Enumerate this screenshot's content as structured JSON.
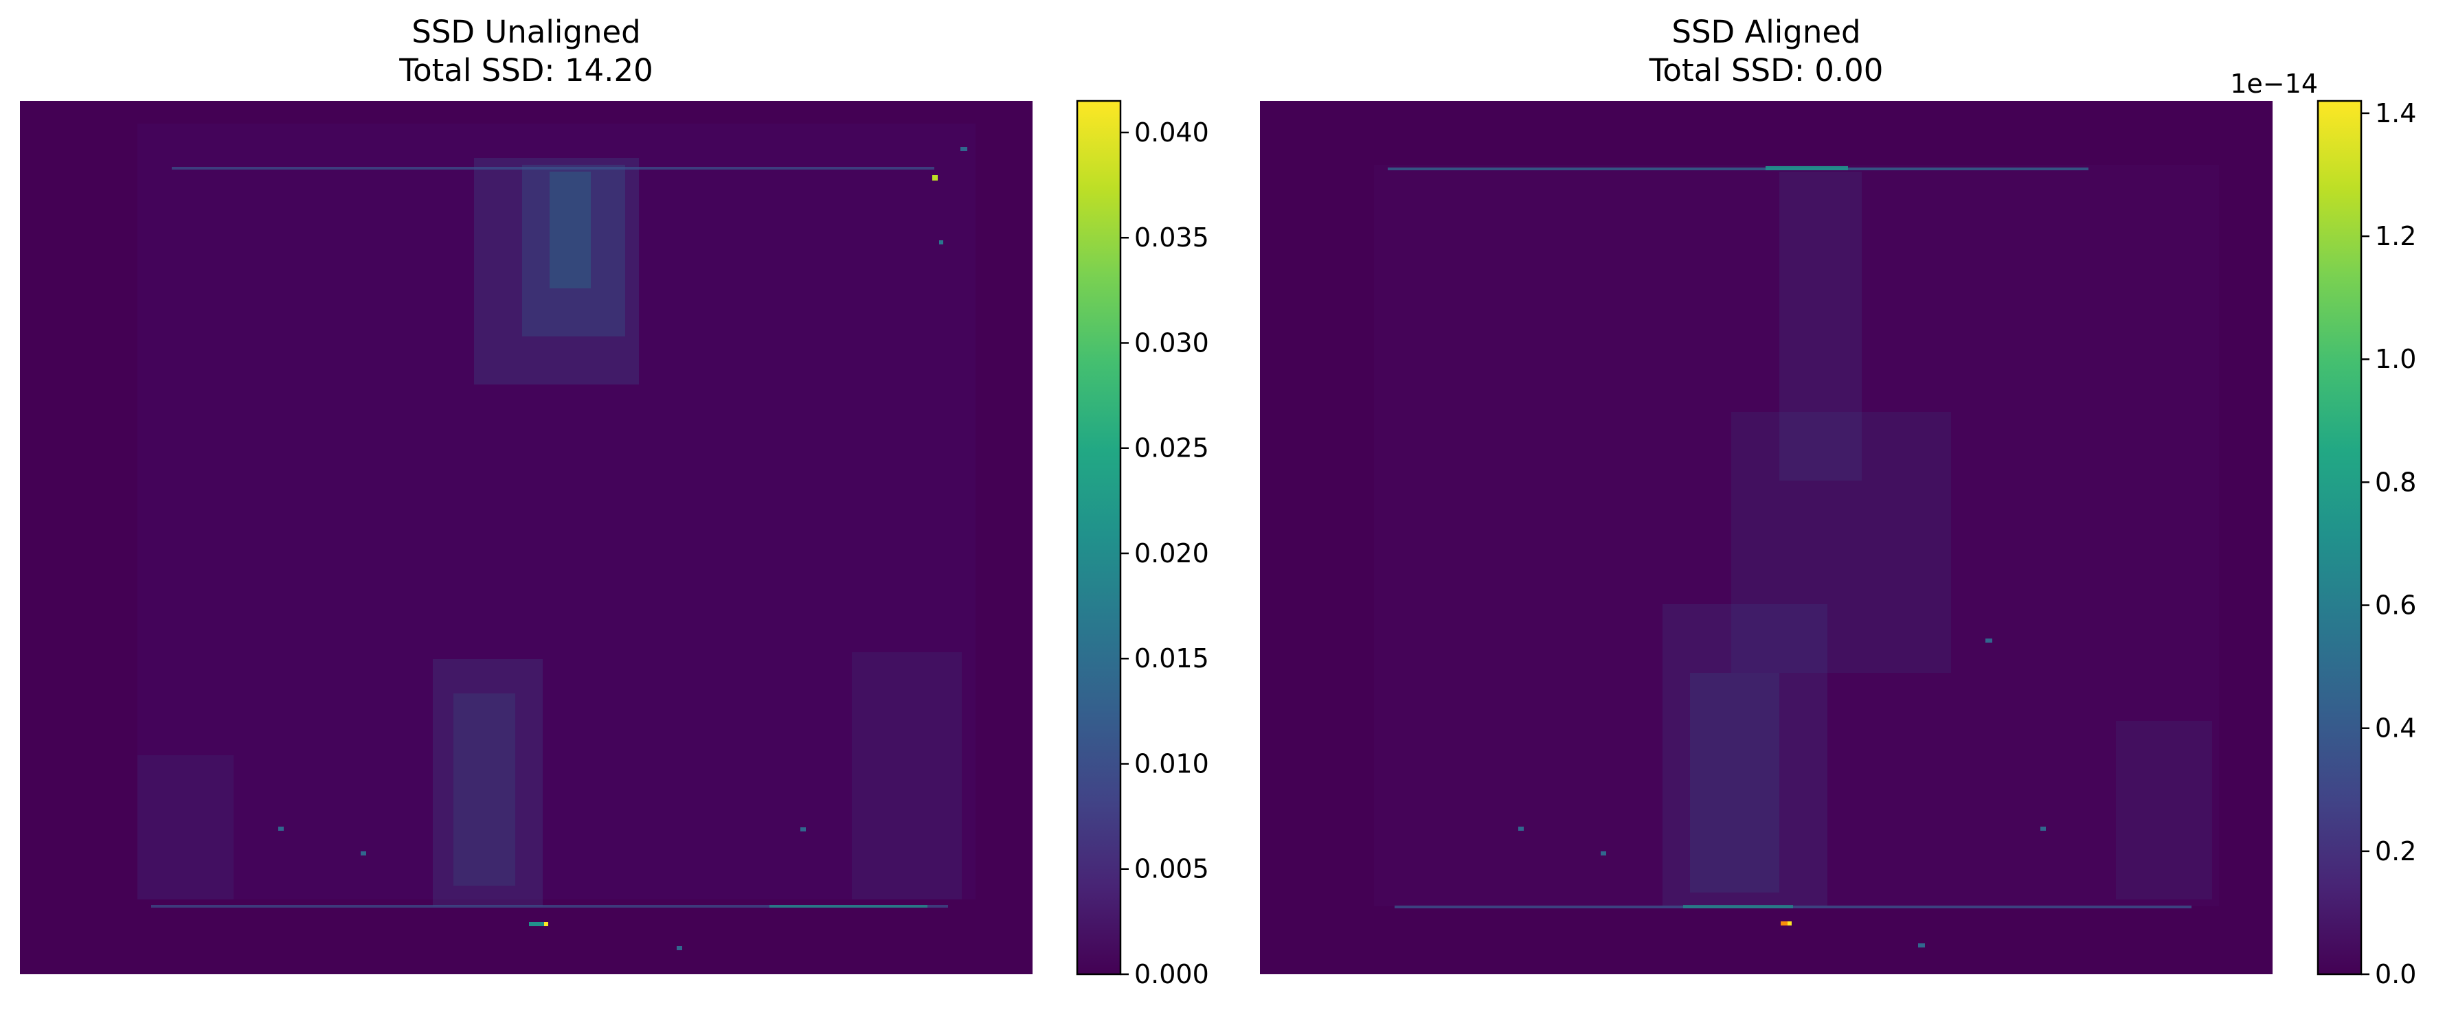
{
  "figure": {
    "background": "#ffffff"
  },
  "chart_data": [
    {
      "type": "heatmap",
      "title": "SSD Unaligned\nTotal SSD: 14.20",
      "colormap": "viridis",
      "axes_visible": false,
      "grid": false,
      "colorbar": {
        "vmin": 0.0,
        "vmax": 0.0415,
        "ticks": [
          0.0,
          0.005,
          0.01,
          0.015,
          0.02,
          0.025,
          0.03,
          0.035,
          0.04
        ],
        "tick_labels": [
          "0.000",
          "0.005",
          "0.010",
          "0.015",
          "0.020",
          "0.025",
          "0.030",
          "0.035",
          "0.040"
        ],
        "offset_text": ""
      }
    },
    {
      "type": "heatmap",
      "title": "SSD Aligned\nTotal SSD: 0.00",
      "colormap": "viridis",
      "axes_visible": false,
      "grid": false,
      "colorbar": {
        "vmin": 0.0,
        "vmax": 1.42,
        "ticks": [
          0.0,
          0.2,
          0.4,
          0.6,
          0.8,
          1.0,
          1.2,
          1.4
        ],
        "tick_labels": [
          "0.0",
          "0.2",
          "0.4",
          "0.6",
          "0.8",
          "1.0",
          "1.2",
          "1.4"
        ],
        "offset_text": "1e−14"
      }
    }
  ]
}
